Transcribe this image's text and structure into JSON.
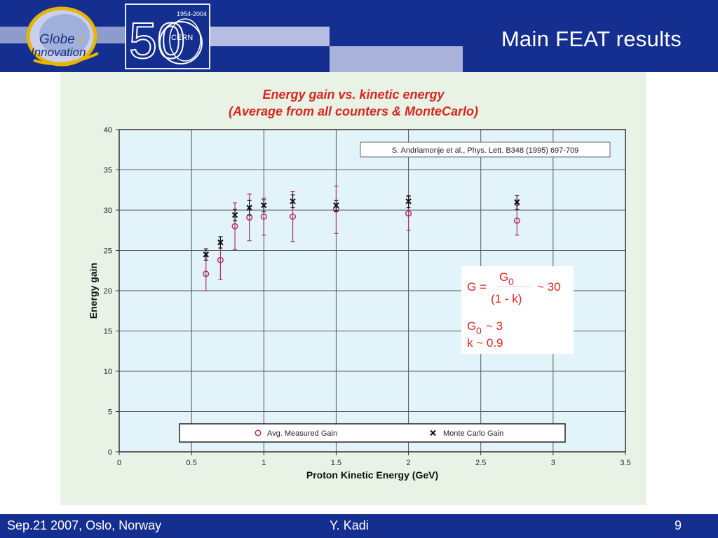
{
  "slide": {
    "title": "Main FEAT results",
    "footer_left": "Sep.21 2007, Oslo, Norway",
    "footer_center": "Y. Kadi",
    "page_number": "9"
  },
  "logos": {
    "globe": {
      "line1": "Globe",
      "of": "of",
      "line2": "Innovation"
    },
    "cern": {
      "years": "1954-2004",
      "number": "50",
      "name": "CERN"
    }
  },
  "colors": {
    "header_bg": "#142f8f",
    "figure_bg": "#e8f3e6",
    "plot_bg": "#e3f3fa",
    "title_red": "#d92520",
    "measured": "#b0306a",
    "montecarlo": "#111111"
  },
  "chart_data": {
    "type": "scatter",
    "title_line1": "Energy gain vs. kinetic energy",
    "title_line2": "(Average from all counters & MonteCarlo)",
    "xlabel": "Proton Kinetic Energy (GeV)",
    "ylabel": "Energy gain",
    "xlim": [
      0,
      3.5
    ],
    "ylim": [
      0,
      40
    ],
    "xticks": [
      0,
      0.5,
      1,
      1.5,
      2,
      2.5,
      3,
      3.5
    ],
    "yticks": [
      0,
      5,
      10,
      15,
      20,
      25,
      30,
      35,
      40
    ],
    "x_tick_labels": [
      "0",
      "0.5",
      "1",
      "1.5",
      "2",
      "2.5",
      "3",
      "3.5"
    ],
    "y_tick_labels": [
      "0",
      "5",
      "10",
      "15",
      "20",
      "25",
      "30",
      "35",
      "40"
    ],
    "grid": true,
    "reference": "S. Andriamonje et al., Phys. Lett. B348 (1995) 697-709",
    "legend_position": "bottom",
    "series": [
      {
        "name": "Avg. Measured Gain",
        "marker": "circle",
        "color": "#b0306a",
        "points": [
          {
            "x": 0.6,
            "y": 22.1,
            "lo": 20.0,
            "hi": 24.2
          },
          {
            "x": 0.7,
            "y": 23.8,
            "lo": 21.4,
            "hi": 26.2
          },
          {
            "x": 0.8,
            "y": 28.0,
            "lo": 25.1,
            "hi": 30.9
          },
          {
            "x": 0.9,
            "y": 29.1,
            "lo": 26.2,
            "hi": 32.0
          },
          {
            "x": 1.0,
            "y": 29.2,
            "lo": 26.9,
            "hi": 31.5
          },
          {
            "x": 1.2,
            "y": 29.2,
            "lo": 26.1,
            "hi": 32.3
          },
          {
            "x": 1.5,
            "y": 30.1,
            "lo": 27.1,
            "hi": 33.0
          },
          {
            "x": 2.0,
            "y": 29.6,
            "lo": 27.5,
            "hi": 31.7
          },
          {
            "x": 2.75,
            "y": 28.7,
            "lo": 26.9,
            "hi": 30.6
          }
        ]
      },
      {
        "name": "Monte Carlo Gain",
        "marker": "cross",
        "color": "#111111",
        "points": [
          {
            "x": 0.6,
            "y": 24.5,
            "lo": 23.8,
            "hi": 25.2
          },
          {
            "x": 0.7,
            "y": 26.0,
            "lo": 25.3,
            "hi": 26.7
          },
          {
            "x": 0.8,
            "y": 29.4,
            "lo": 28.7,
            "hi": 30.1
          },
          {
            "x": 0.9,
            "y": 30.3,
            "lo": 29.4,
            "hi": 31.2
          },
          {
            "x": 1.0,
            "y": 30.6,
            "lo": 29.8,
            "hi": 31.3
          },
          {
            "x": 1.2,
            "y": 31.1,
            "lo": 30.3,
            "hi": 31.9
          },
          {
            "x": 1.5,
            "y": 30.6,
            "lo": 29.9,
            "hi": 31.2
          },
          {
            "x": 2.0,
            "y": 31.1,
            "lo": 30.3,
            "hi": 31.8
          },
          {
            "x": 2.75,
            "y": 31.0,
            "lo": 30.1,
            "hi": 31.8
          }
        ]
      }
    ],
    "formula": {
      "g_prefix": "G =",
      "numerator_base": "G",
      "numerator_sub": "0",
      "denominator": "(1 - k)",
      "approx": "~ 30",
      "g0_base": "G",
      "g0_sub": "0",
      "g0_value": "~  3",
      "k_value": "k ~ 0.9"
    }
  }
}
